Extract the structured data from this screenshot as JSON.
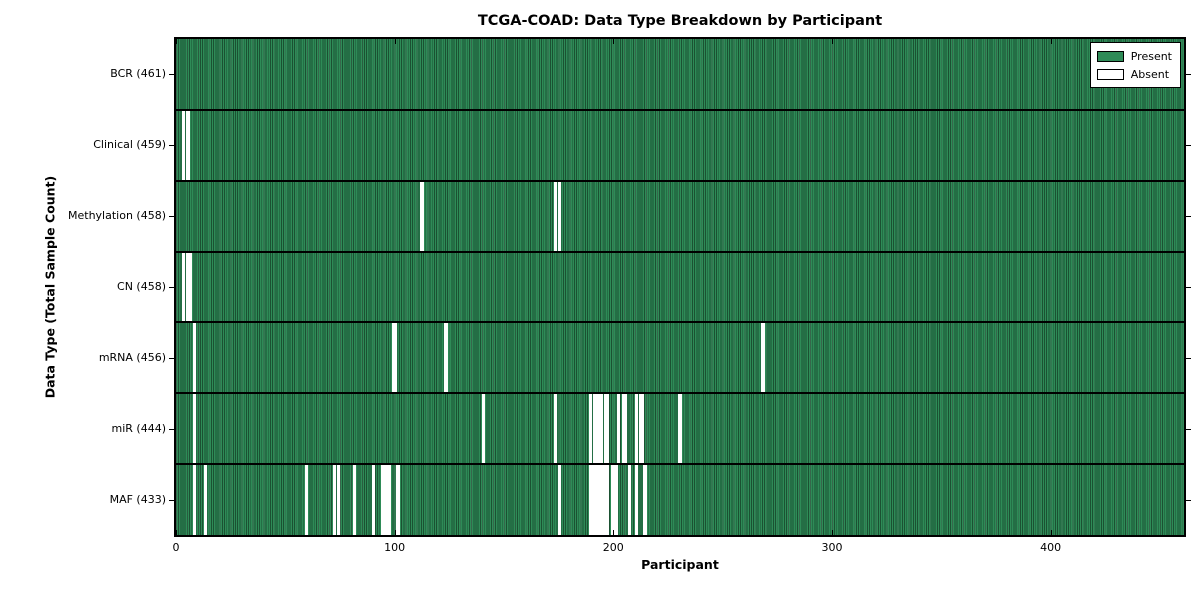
{
  "chart_data": {
    "type": "heatmap",
    "title": "TCGA-COAD: Data Type Breakdown by Participant",
    "xlabel": "Participant",
    "ylabel": "Data Type (Total Sample Count)",
    "n_participants": 461,
    "x_ticks": [
      0,
      100,
      200,
      300,
      400
    ],
    "legend": {
      "present": "Present",
      "absent": "Absent"
    },
    "colors": {
      "present": "#2e8b57",
      "absent": "#ffffff",
      "grid_line": "#000000"
    },
    "legend_position": "upper right",
    "rows": [
      {
        "name": "bcr",
        "label": "BCR (461)",
        "count": 461,
        "absent": []
      },
      {
        "name": "clinical",
        "label": "Clinical (459)",
        "count": 459,
        "absent": [
          3,
          5
        ]
      },
      {
        "name": "methylation",
        "label": "Methylation (458)",
        "count": 458,
        "absent": [
          112,
          173,
          175
        ]
      },
      {
        "name": "cn",
        "label": "CN (458)",
        "count": 458,
        "absent": [
          3,
          5,
          6
        ]
      },
      {
        "name": "mrna",
        "label": "mRNA (456)",
        "count": 456,
        "absent": [
          8,
          99,
          100,
          123,
          268
        ]
      },
      {
        "name": "mir",
        "label": "miR (444)",
        "count": 444,
        "absent": [
          8,
          140,
          173,
          189,
          191,
          192,
          193,
          194,
          196,
          197,
          202,
          204,
          205,
          210,
          212,
          213,
          230
        ]
      },
      {
        "name": "maf",
        "label": "MAF (433)",
        "count": 433,
        "absent": [
          8,
          13,
          59,
          72,
          74,
          81,
          90,
          94,
          95,
          96,
          97,
          101,
          175,
          189,
          190,
          191,
          192,
          193,
          194,
          195,
          196,
          197,
          199,
          200,
          201,
          207,
          210,
          214
        ]
      }
    ]
  }
}
